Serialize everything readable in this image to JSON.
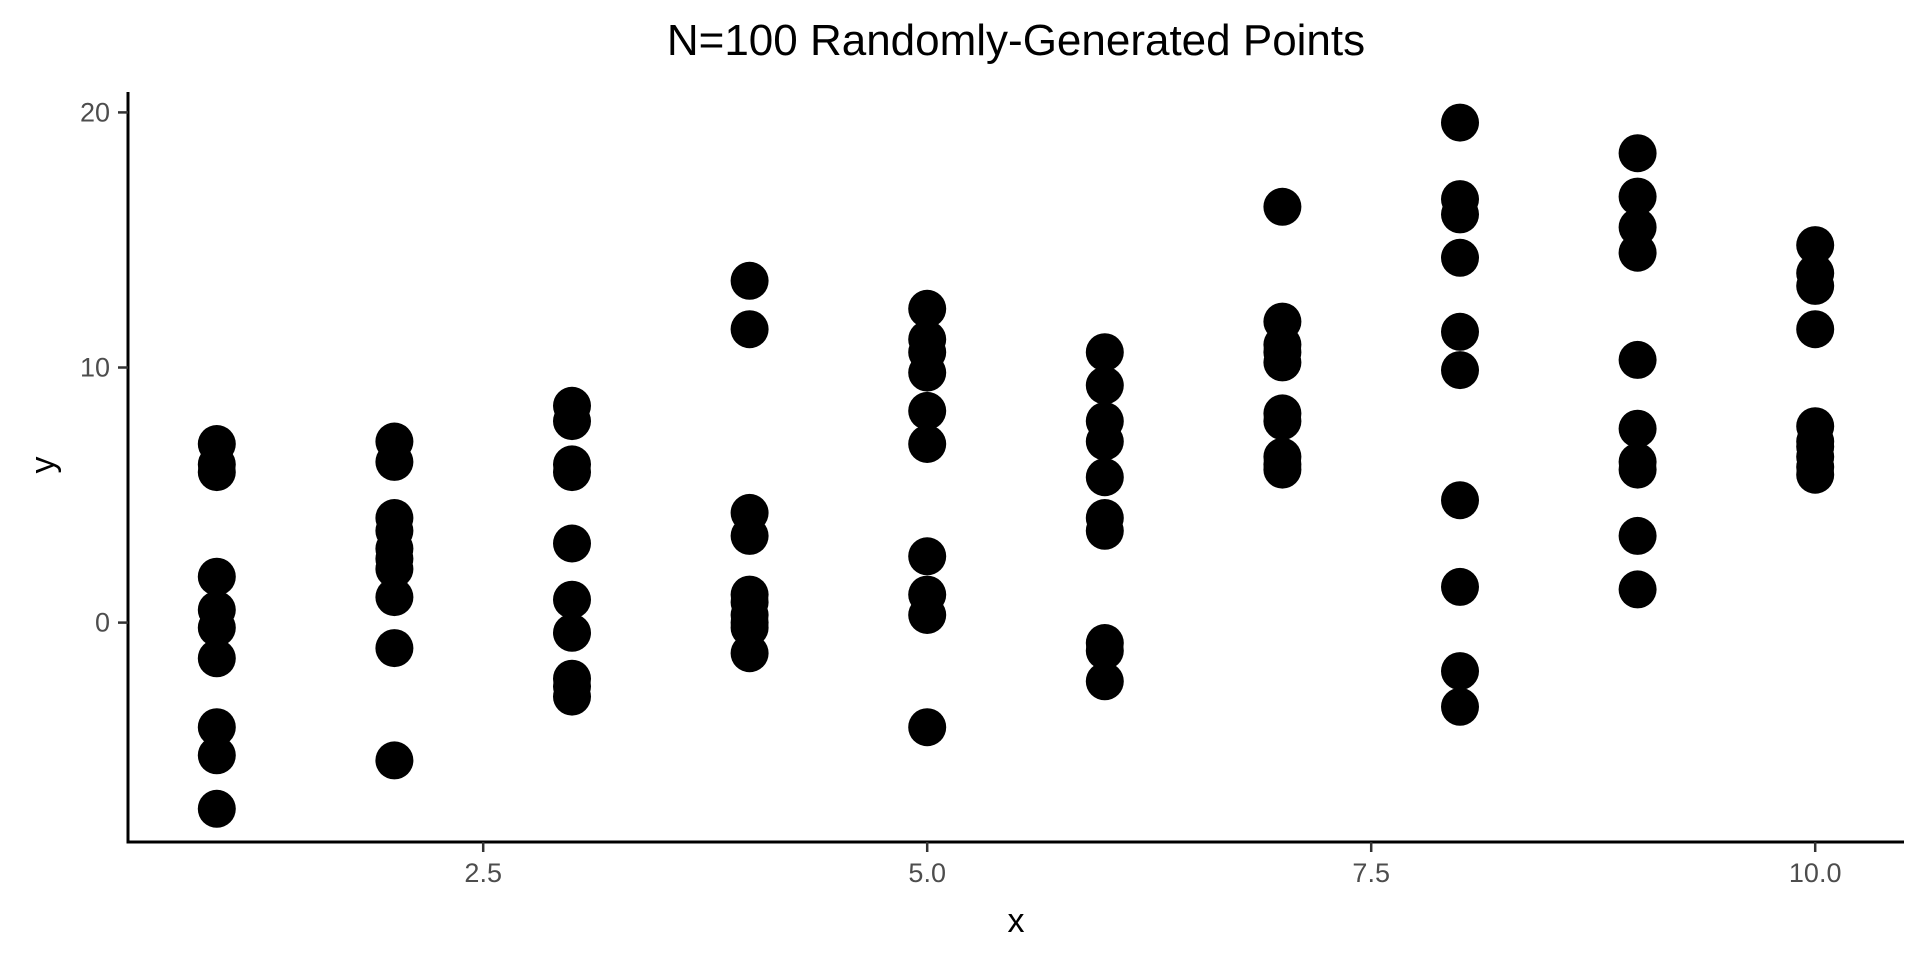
{
  "chart_data": {
    "type": "scatter",
    "title": "N=100 Randomly-Generated Points",
    "xlabel": "x",
    "ylabel": "y",
    "xlim": [
      0.5,
      10.5
    ],
    "ylim": [
      -8.6,
      20.8
    ],
    "x_ticks": [
      2.5,
      5.0,
      7.5,
      10.0
    ],
    "x_tick_labels": [
      "2.5",
      "5.0",
      "7.5",
      "10.0"
    ],
    "y_ticks": [
      0,
      10,
      20
    ],
    "y_tick_labels": [
      "0",
      "10",
      "20"
    ],
    "grid": false,
    "legend": "none",
    "point_color": "#000000",
    "points": [
      {
        "x": 1,
        "y": 7.0
      },
      {
        "x": 1,
        "y": 6.2
      },
      {
        "x": 1,
        "y": 5.9
      },
      {
        "x": 1,
        "y": 1.8
      },
      {
        "x": 1,
        "y": 0.5
      },
      {
        "x": 1,
        "y": -0.2
      },
      {
        "x": 1,
        "y": -1.4
      },
      {
        "x": 1,
        "y": -4.1
      },
      {
        "x": 1,
        "y": -5.2
      },
      {
        "x": 1,
        "y": -7.3
      },
      {
        "x": 2,
        "y": 7.1
      },
      {
        "x": 2,
        "y": 6.3
      },
      {
        "x": 2,
        "y": 4.1
      },
      {
        "x": 2,
        "y": 3.6
      },
      {
        "x": 2,
        "y": 2.9
      },
      {
        "x": 2,
        "y": 2.5
      },
      {
        "x": 2,
        "y": 2.1
      },
      {
        "x": 2,
        "y": 1.0
      },
      {
        "x": 2,
        "y": -1.0
      },
      {
        "x": 2,
        "y": -5.4
      },
      {
        "x": 3,
        "y": 8.5
      },
      {
        "x": 3,
        "y": 7.9
      },
      {
        "x": 3,
        "y": 6.2
      },
      {
        "x": 3,
        "y": 5.9
      },
      {
        "x": 3,
        "y": 3.1
      },
      {
        "x": 3,
        "y": 0.9
      },
      {
        "x": 3,
        "y": -0.4
      },
      {
        "x": 3,
        "y": -2.2
      },
      {
        "x": 3,
        "y": -2.5
      },
      {
        "x": 3,
        "y": -2.9
      },
      {
        "x": 4,
        "y": 13.4
      },
      {
        "x": 4,
        "y": 11.5
      },
      {
        "x": 4,
        "y": 4.3
      },
      {
        "x": 4,
        "y": 3.4
      },
      {
        "x": 4,
        "y": 1.1
      },
      {
        "x": 4,
        "y": 0.8
      },
      {
        "x": 4,
        "y": 0.3
      },
      {
        "x": 4,
        "y": 0.0
      },
      {
        "x": 4,
        "y": -0.2
      },
      {
        "x": 4,
        "y": -1.2
      },
      {
        "x": 5,
        "y": 12.3
      },
      {
        "x": 5,
        "y": 11.1
      },
      {
        "x": 5,
        "y": 10.6
      },
      {
        "x": 5,
        "y": 9.8
      },
      {
        "x": 5,
        "y": 8.3
      },
      {
        "x": 5,
        "y": 7.0
      },
      {
        "x": 5,
        "y": 2.6
      },
      {
        "x": 5,
        "y": 1.1
      },
      {
        "x": 5,
        "y": 0.3
      },
      {
        "x": 5,
        "y": -4.1
      },
      {
        "x": 6,
        "y": 10.6
      },
      {
        "x": 6,
        "y": 9.3
      },
      {
        "x": 6,
        "y": 7.9
      },
      {
        "x": 6,
        "y": 7.1
      },
      {
        "x": 6,
        "y": 5.7
      },
      {
        "x": 6,
        "y": 4.1
      },
      {
        "x": 6,
        "y": 3.6
      },
      {
        "x": 6,
        "y": -0.8
      },
      {
        "x": 6,
        "y": -1.1
      },
      {
        "x": 6,
        "y": -2.3
      },
      {
        "x": 7,
        "y": 16.3
      },
      {
        "x": 7,
        "y": 11.8
      },
      {
        "x": 7,
        "y": 10.9
      },
      {
        "x": 7,
        "y": 10.6
      },
      {
        "x": 7,
        "y": 10.2
      },
      {
        "x": 7,
        "y": 8.2
      },
      {
        "x": 7,
        "y": 7.9
      },
      {
        "x": 7,
        "y": 6.5
      },
      {
        "x": 7,
        "y": 6.2
      },
      {
        "x": 7,
        "y": 6.0
      },
      {
        "x": 8,
        "y": 19.6
      },
      {
        "x": 8,
        "y": 16.6
      },
      {
        "x": 8,
        "y": 16.0
      },
      {
        "x": 8,
        "y": 14.3
      },
      {
        "x": 8,
        "y": 11.4
      },
      {
        "x": 8,
        "y": 9.9
      },
      {
        "x": 8,
        "y": 4.8
      },
      {
        "x": 8,
        "y": 1.4
      },
      {
        "x": 8,
        "y": -1.9
      },
      {
        "x": 8,
        "y": -3.3
      },
      {
        "x": 9,
        "y": 18.4
      },
      {
        "x": 9,
        "y": 16.7
      },
      {
        "x": 9,
        "y": 15.5
      },
      {
        "x": 9,
        "y": 14.5
      },
      {
        "x": 9,
        "y": 10.3
      },
      {
        "x": 9,
        "y": 7.6
      },
      {
        "x": 9,
        "y": 6.3
      },
      {
        "x": 9,
        "y": 6.0
      },
      {
        "x": 9,
        "y": 3.4
      },
      {
        "x": 9,
        "y": 1.3
      },
      {
        "x": 10,
        "y": 14.8
      },
      {
        "x": 10,
        "y": 13.7
      },
      {
        "x": 10,
        "y": 13.2
      },
      {
        "x": 10,
        "y": 11.5
      },
      {
        "x": 10,
        "y": 7.7
      },
      {
        "x": 10,
        "y": 7.1
      },
      {
        "x": 10,
        "y": 6.9
      },
      {
        "x": 10,
        "y": 6.5
      },
      {
        "x": 10,
        "y": 6.1
      },
      {
        "x": 10,
        "y": 5.8
      }
    ]
  }
}
